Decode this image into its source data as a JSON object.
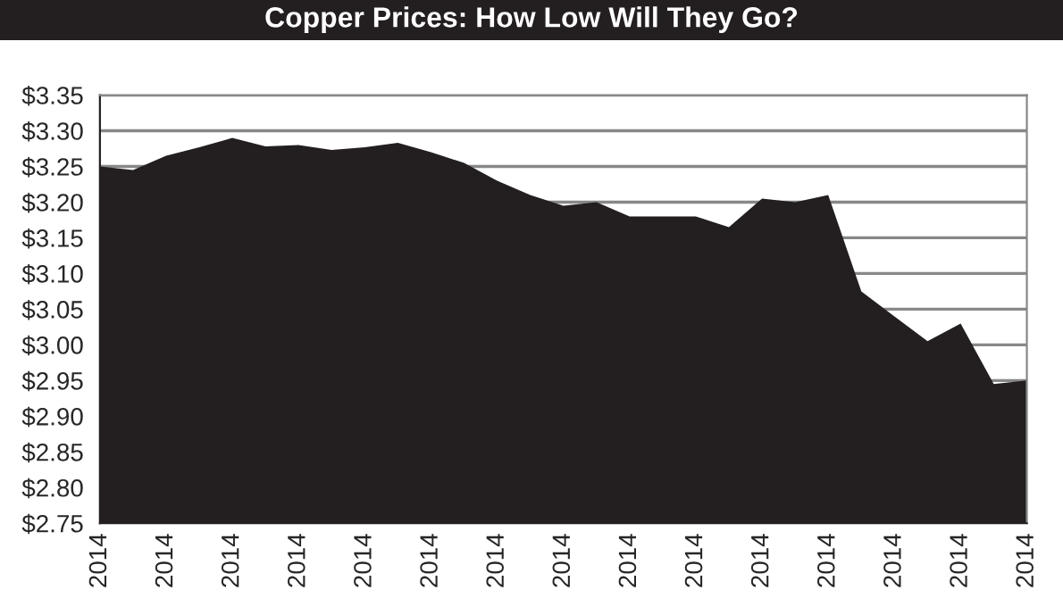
{
  "chart_data": {
    "type": "area",
    "title": "Copper Prices: How Low Will They Go?",
    "categories": [
      "2014",
      null,
      "2014",
      null,
      "2014",
      null,
      "2014",
      null,
      "2014",
      null,
      "2014",
      null,
      "2014",
      null,
      "2014",
      null,
      "2014",
      null,
      "2014",
      null,
      "2014",
      null,
      "2014",
      null,
      "2014",
      null,
      "2014",
      null,
      "2014"
    ],
    "series": [
      {
        "color": "#231f20",
        "values": [
          3.25,
          3.245,
          3.265,
          3.277,
          3.29,
          3.278,
          3.28,
          3.273,
          3.277,
          3.283,
          3.27,
          3.255,
          3.23,
          3.21,
          3.195,
          3.2,
          3.18,
          3.18,
          3.18,
          3.165,
          3.205,
          3.2,
          3.21,
          3.075,
          3.04,
          3.005,
          3.03,
          2.945,
          2.95
        ]
      }
    ],
    "ylim": [
      2.75,
      3.35
    ],
    "yticks": [
      {
        "value": 2.75,
        "label": "$2.75"
      },
      {
        "value": 2.8,
        "label": "$2.80"
      },
      {
        "value": 2.85,
        "label": "$2.85"
      },
      {
        "value": 2.9,
        "label": "$2.90"
      },
      {
        "value": 2.95,
        "label": "$2.95"
      },
      {
        "value": 3.0,
        "label": "$3.00"
      },
      {
        "value": 3.05,
        "label": "$3.05"
      },
      {
        "value": 3.1,
        "label": "$3.10"
      },
      {
        "value": 3.15,
        "label": "$3.15"
      },
      {
        "value": 3.2,
        "label": "$3.20"
      },
      {
        "value": 3.25,
        "label": "$3.25"
      },
      {
        "value": 3.3,
        "label": "$3.30"
      },
      {
        "value": 3.35,
        "label": "$3.35"
      }
    ],
    "grid": "y"
  }
}
